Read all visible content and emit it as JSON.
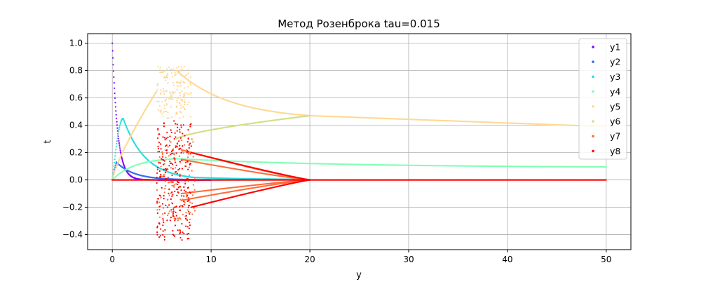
{
  "chart_data": {
    "type": "scatter",
    "title": "Метод Розенброка tau=0.015",
    "xlabel": "y",
    "ylabel": "t",
    "xlim": [
      -2.5,
      52.5
    ],
    "ylim": [
      -0.51,
      1.07
    ],
    "x_ticks": [
      0,
      10,
      20,
      30,
      40,
      50
    ],
    "y_ticks": [
      -0.4,
      -0.2,
      0.0,
      0.2,
      0.4,
      0.6,
      0.8,
      1.0
    ],
    "x_tick_labels": [
      "0",
      "10",
      "20",
      "30",
      "40",
      "50"
    ],
    "y_tick_labels": [
      "−0.4",
      "−0.2",
      "0.0",
      "0.2",
      "0.4",
      "0.6",
      "0.8",
      "1.0"
    ],
    "grid": true,
    "legend_position": "top-right",
    "series": [
      {
        "name": "y1",
        "color": "#8000ff"
      },
      {
        "name": "y2",
        "color": "#3c6df0"
      },
      {
        "name": "y3",
        "color": "#2adddd"
      },
      {
        "name": "y4",
        "color": "#80ffb4"
      },
      {
        "name": "y5",
        "color": "#ffd892"
      },
      {
        "name": "y6",
        "color": "#d4dd80"
      },
      {
        "name": "y7",
        "color": "#ff6e3a"
      },
      {
        "name": "y8",
        "color": "#ff0000"
      }
    ],
    "curves": {
      "y1": {
        "type": "decay",
        "start": 1.0,
        "rate": 1.9
      },
      "y2": {
        "type": "pulse",
        "peak": 0.13,
        "peak_at": 0.4,
        "decay_rate": 0.55
      },
      "y3": {
        "type": "pulse",
        "peak": 0.45,
        "peak_at": 1.1,
        "decay_rate": 0.45,
        "long_tail": 0.03
      },
      "y4": {
        "type": "rise_fall",
        "peak": 0.155,
        "peak_at": 6.5,
        "end_value": 0.095
      },
      "y5": {
        "type": "upper_band",
        "rise_to": 0.65,
        "rise_end": 4.5,
        "scatter_range": [
          4.5,
          8.0
        ],
        "band_top": 0.83,
        "band_join": 0.47,
        "join_at": 20,
        "end_value": 0.39
      },
      "y6": {
        "type": "lower_branch",
        "from": 0.3,
        "to": 0.47,
        "join_at": 20
      },
      "y7": {
        "type": "converging",
        "branches": [
          0.22,
          0.15,
          -0.1,
          -0.15
        ],
        "join_at": 20,
        "end_value": 0.0
      },
      "y8": {
        "type": "converging",
        "branches": [
          0.2,
          -0.2
        ],
        "join_at": 20,
        "end_value": 0.0,
        "scatter_range": [
          4.5,
          8.0
        ],
        "scatter_y": [
          -0.44,
          0.44
        ]
      }
    }
  }
}
